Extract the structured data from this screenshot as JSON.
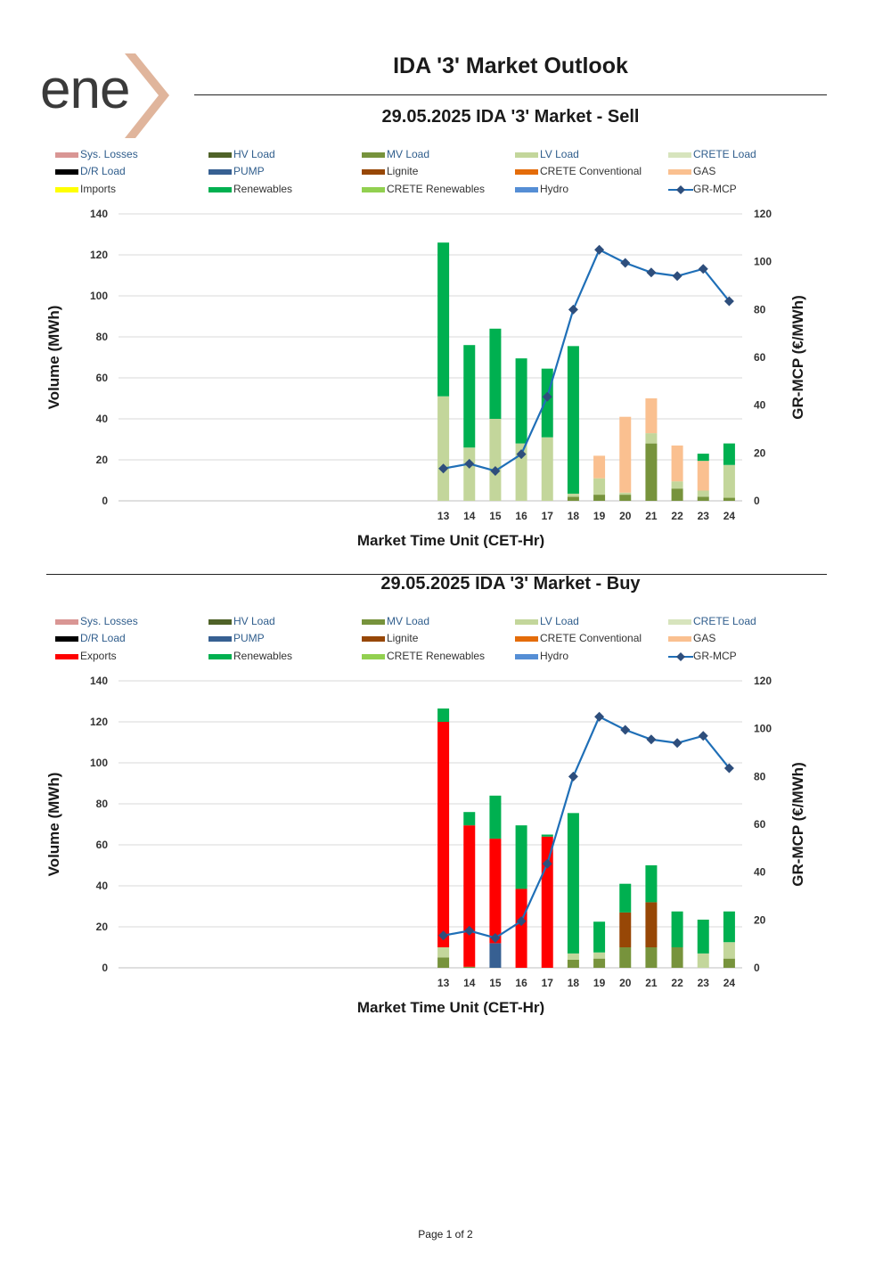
{
  "brand": {
    "logo_text": "ene",
    "accent_color": "#d9a58a"
  },
  "page_title": "IDA '3' Market Outlook",
  "footer": "Page 1 of 2",
  "legend_sell": [
    {
      "label": "Sys. Losses",
      "color": "#d99694",
      "marker": "bar"
    },
    {
      "label": "HV Load",
      "color": "#4f6228",
      "marker": "bar"
    },
    {
      "label": "MV Load",
      "color": "#77933c",
      "marker": "bar"
    },
    {
      "label": "LV Load",
      "color": "#c3d69b",
      "marker": "bar"
    },
    {
      "label": "CRETE Load",
      "color": "#d7e4bd",
      "marker": "bar"
    },
    {
      "label": "D/R Load",
      "color": "#000000",
      "marker": "bar"
    },
    {
      "label": "PUMP",
      "color": "#376092",
      "marker": "bar"
    },
    {
      "label": "Lignite",
      "color": "#974706",
      "marker": "bar"
    },
    {
      "label": "CRETE Conventional",
      "color": "#e46c0a",
      "marker": "bar"
    },
    {
      "label": "GAS",
      "color": "#fac090",
      "marker": "bar"
    },
    {
      "label": "Imports",
      "color": "#ffff00",
      "marker": "bar"
    },
    {
      "label": "Renewables",
      "color": "#00b050",
      "marker": "bar"
    },
    {
      "label": "CRETE Renewables",
      "color": "#92d050",
      "marker": "bar"
    },
    {
      "label": "Hydro",
      "color": "#558ed5",
      "marker": "bar"
    },
    {
      "label": "GR-MCP",
      "color": "#1f6fb7",
      "marker": "line"
    }
  ],
  "legend_buy": [
    {
      "label": "Sys. Losses",
      "color": "#d99694",
      "marker": "bar"
    },
    {
      "label": "HV Load",
      "color": "#4f6228",
      "marker": "bar"
    },
    {
      "label": "MV Load",
      "color": "#77933c",
      "marker": "bar"
    },
    {
      "label": "LV Load",
      "color": "#c3d69b",
      "marker": "bar"
    },
    {
      "label": "CRETE Load",
      "color": "#d7e4bd",
      "marker": "bar"
    },
    {
      "label": "D/R Load",
      "color": "#000000",
      "marker": "bar"
    },
    {
      "label": "PUMP",
      "color": "#376092",
      "marker": "bar"
    },
    {
      "label": "Lignite",
      "color": "#974706",
      "marker": "bar"
    },
    {
      "label": "CRETE Conventional",
      "color": "#e46c0a",
      "marker": "bar"
    },
    {
      "label": "GAS",
      "color": "#fac090",
      "marker": "bar"
    },
    {
      "label": "Exports",
      "color": "#ff0000",
      "marker": "bar"
    },
    {
      "label": "Renewables",
      "color": "#00b050",
      "marker": "bar"
    },
    {
      "label": "CRETE Renewables",
      "color": "#92d050",
      "marker": "bar"
    },
    {
      "label": "Hydro",
      "color": "#558ed5",
      "marker": "bar"
    },
    {
      "label": "GR-MCP",
      "color": "#1f6fb7",
      "marker": "line"
    }
  ],
  "chart_data": [
    {
      "id": "sell",
      "type": "bar",
      "stacked": true,
      "title": "29.05.2025  IDA '3' Market - Sell",
      "xlabel": "Market Time Unit (CET-Hr)",
      "ylabel": "Volume (MWh)",
      "y2label": "GR-MCP (€/MWh)",
      "ylim": [
        0,
        140
      ],
      "yticks": [
        0,
        20,
        40,
        60,
        80,
        100,
        120,
        140
      ],
      "y2lim": [
        0,
        120
      ],
      "y2ticks": [
        0,
        20,
        40,
        60,
        80,
        100,
        120
      ],
      "grid": true,
      "categories": [
        "1",
        "2",
        "3",
        "4",
        "5",
        "6",
        "7",
        "8",
        "9",
        "10",
        "11",
        "12",
        "13",
        "14",
        "15",
        "16",
        "17",
        "18",
        "19",
        "20",
        "21",
        "22",
        "23",
        "24"
      ],
      "tick_labels": [
        "",
        "",
        "",
        "",
        "",
        "",
        "",
        "",
        "",
        "",
        "",
        "",
        "13",
        "14",
        "15",
        "16",
        "17",
        "18",
        "19",
        "20",
        "21",
        "22",
        "23",
        "24"
      ],
      "series": [
        {
          "name": "MV Load",
          "color": "#77933c",
          "values": [
            0,
            0,
            0,
            0,
            0,
            0,
            0,
            0,
            0,
            0,
            0,
            0,
            0,
            0,
            0,
            0,
            0,
            2,
            3,
            3,
            28,
            6,
            2,
            1.5
          ]
        },
        {
          "name": "LV Load",
          "color": "#c3d69b",
          "values": [
            0,
            0,
            0,
            0,
            0,
            0,
            0,
            0,
            0,
            0,
            0,
            0,
            51,
            26,
            40,
            28,
            31,
            1.5,
            8,
            1,
            5,
            3.5,
            3,
            16
          ]
        },
        {
          "name": "GAS",
          "color": "#fac090",
          "values": [
            0,
            0,
            0,
            0,
            0,
            0,
            0,
            0,
            0,
            0,
            0,
            0,
            0,
            0,
            0,
            0,
            0,
            0,
            11,
            37,
            17,
            17.5,
            14.5,
            0
          ]
        },
        {
          "name": "Renewables",
          "color": "#00b050",
          "values": [
            0,
            0,
            0,
            0,
            0,
            0,
            0,
            0,
            0,
            0,
            0,
            0,
            75,
            50,
            44,
            41.5,
            33.5,
            72,
            0,
            0,
            0,
            0,
            3.5,
            10.5
          ]
        }
      ],
      "line": {
        "name": "GR-MCP",
        "color": "#1f6fb7",
        "marker_color": "#2e4e7c",
        "values": [
          null,
          null,
          null,
          null,
          null,
          null,
          null,
          null,
          null,
          null,
          null,
          null,
          13.5,
          15.5,
          12.5,
          19.5,
          43.5,
          80,
          105,
          99.5,
          95.5,
          94,
          97,
          83.5
        ]
      }
    },
    {
      "id": "buy",
      "type": "bar",
      "stacked": true,
      "title": "29.05.2025  IDA '3' Market - Buy",
      "xlabel": "Market Time Unit (CET-Hr)",
      "ylabel": "Volume (MWh)",
      "y2label": "GR-MCP (€/MWh)",
      "ylim": [
        0,
        140
      ],
      "yticks": [
        0,
        20,
        40,
        60,
        80,
        100,
        120,
        140
      ],
      "y2lim": [
        0,
        120
      ],
      "y2ticks": [
        0,
        20,
        40,
        60,
        80,
        100,
        120
      ],
      "grid": true,
      "categories": [
        "1",
        "2",
        "3",
        "4",
        "5",
        "6",
        "7",
        "8",
        "9",
        "10",
        "11",
        "12",
        "13",
        "14",
        "15",
        "16",
        "17",
        "18",
        "19",
        "20",
        "21",
        "22",
        "23",
        "24"
      ],
      "tick_labels": [
        "",
        "",
        "",
        "",
        "",
        "",
        "",
        "",
        "",
        "",
        "",
        "",
        "13",
        "14",
        "15",
        "16",
        "17",
        "18",
        "19",
        "20",
        "21",
        "22",
        "23",
        "24"
      ],
      "series": [
        {
          "name": "MV Load",
          "color": "#77933c",
          "values": [
            0,
            0,
            0,
            0,
            0,
            0,
            0,
            0,
            0,
            0,
            0,
            0,
            5,
            0.5,
            0,
            0,
            0,
            4,
            4.5,
            10,
            10,
            10,
            0,
            4.5
          ]
        },
        {
          "name": "LV Load",
          "color": "#c3d69b",
          "values": [
            0,
            0,
            0,
            0,
            0,
            0,
            0,
            0,
            0,
            0,
            0,
            0,
            5,
            0,
            0,
            0,
            0,
            3,
            3,
            0,
            0,
            0,
            7,
            8
          ]
        },
        {
          "name": "PUMP",
          "color": "#376092",
          "values": [
            0,
            0,
            0,
            0,
            0,
            0,
            0,
            0,
            0,
            0,
            0,
            0,
            0,
            0,
            12,
            0,
            0,
            0,
            0,
            0,
            0,
            0,
            0,
            0
          ]
        },
        {
          "name": "Lignite",
          "color": "#974706",
          "values": [
            0,
            0,
            0,
            0,
            0,
            0,
            0,
            0,
            0,
            0,
            0,
            0,
            0,
            0,
            0,
            0,
            0,
            0,
            0,
            17,
            22,
            0,
            0,
            0
          ]
        },
        {
          "name": "Exports",
          "color": "#ff0000",
          "values": [
            0,
            0,
            0,
            0,
            0,
            0,
            0,
            0,
            0,
            0,
            0,
            0,
            110,
            69,
            51,
            38.5,
            64,
            0,
            0,
            0,
            0,
            0,
            0,
            0
          ]
        },
        {
          "name": "Renewables",
          "color": "#00b050",
          "values": [
            0,
            0,
            0,
            0,
            0,
            0,
            0,
            0,
            0,
            0,
            0,
            0,
            6.5,
            6.5,
            21,
            31,
            1,
            68.5,
            15,
            14,
            18,
            17.5,
            16.5,
            15
          ]
        }
      ],
      "line": {
        "name": "GR-MCP",
        "color": "#1f6fb7",
        "marker_color": "#2e4e7c",
        "values": [
          null,
          null,
          null,
          null,
          null,
          null,
          null,
          null,
          null,
          null,
          null,
          null,
          13.5,
          15.5,
          12.5,
          19.5,
          43.5,
          80,
          105,
          99.5,
          95.5,
          94,
          97,
          83.5
        ]
      }
    }
  ]
}
